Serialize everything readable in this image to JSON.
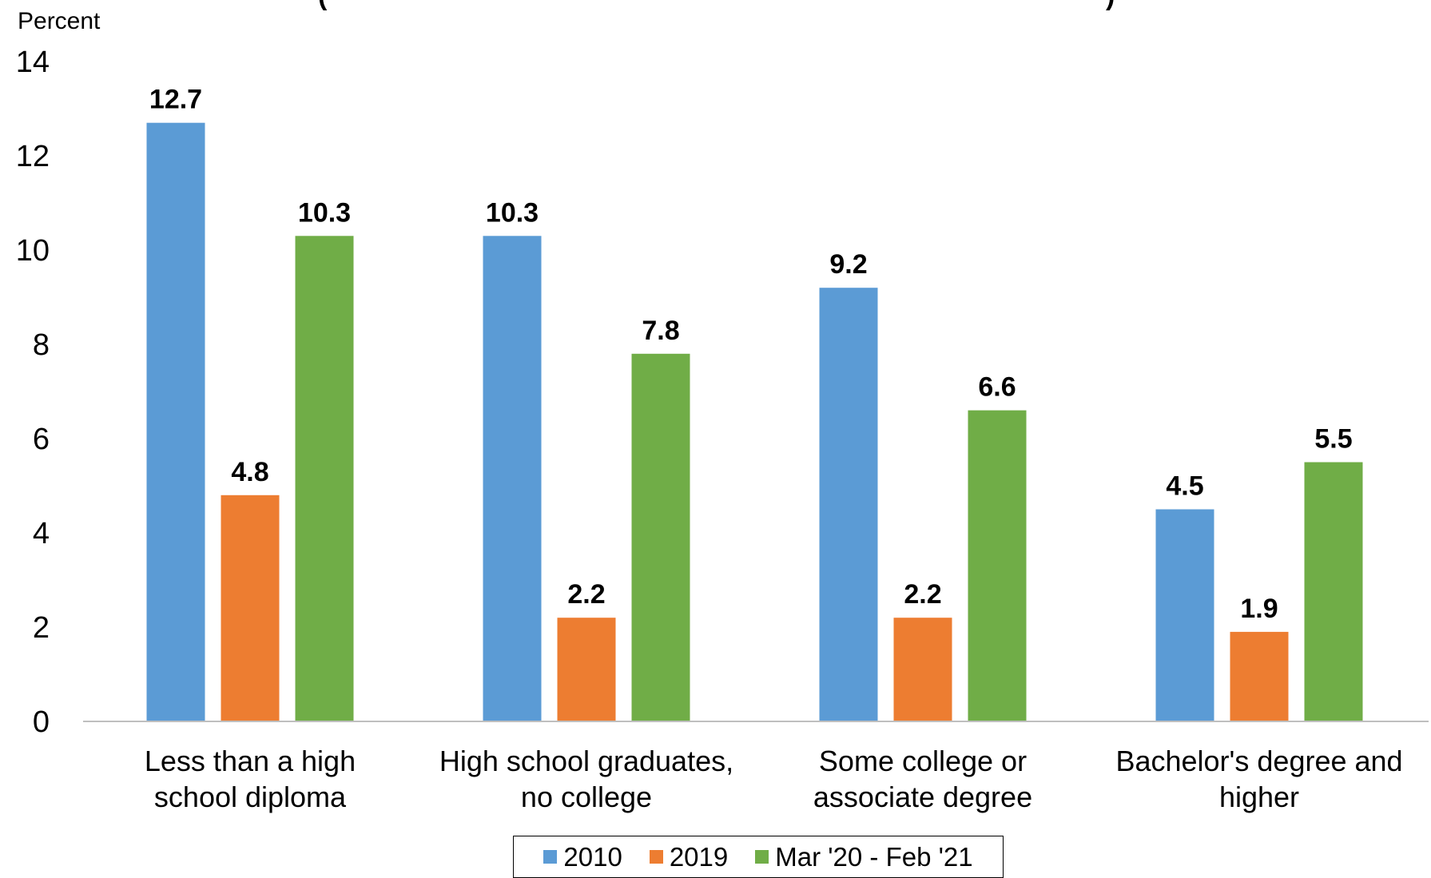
{
  "chart_data": {
    "type": "bar",
    "title": "(",
    "title_right": ")",
    "ylabel": "Percent",
    "ylim": [
      0,
      14
    ],
    "yticks": [
      0,
      2,
      4,
      6,
      8,
      10,
      12,
      14
    ],
    "grid": false,
    "legend_position": "bottom-center",
    "categories": [
      [
        "Less than a high",
        "school diploma"
      ],
      [
        "High school graduates,",
        "no college"
      ],
      [
        "Some college or",
        "associate degree"
      ],
      [
        "Bachelor's degree and",
        "higher"
      ]
    ],
    "series": [
      {
        "name": "2010",
        "color": "#5b9bd5",
        "values": [
          12.7,
          10.3,
          9.2,
          4.5
        ],
        "labels": [
          "12.7",
          "10.3",
          "9.2",
          "4.5"
        ]
      },
      {
        "name": "2019",
        "color": "#ed7d31",
        "values": [
          4.8,
          2.2,
          2.2,
          1.9
        ],
        "labels": [
          "4.8",
          "2.2",
          "2.2",
          "1.9"
        ]
      },
      {
        "name": "Mar '20 - Feb '21",
        "color": "#70ad47",
        "values": [
          10.3,
          7.8,
          6.6,
          5.5
        ],
        "labels": [
          "10.3",
          "7.8",
          "6.6",
          "5.5"
        ]
      }
    ]
  }
}
